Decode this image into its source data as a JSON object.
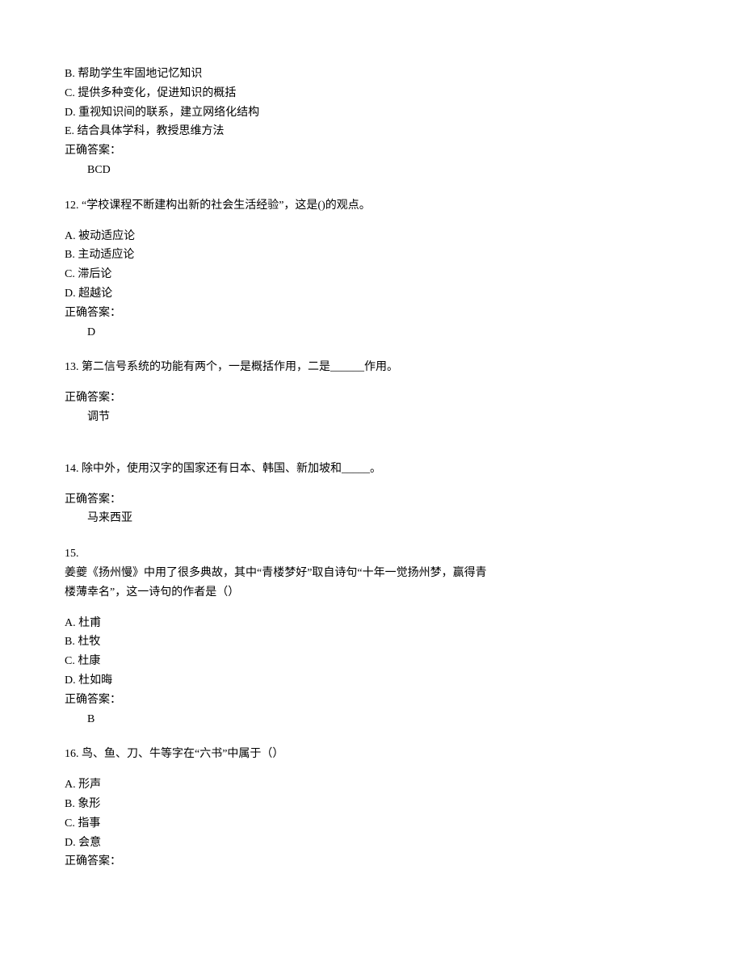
{
  "q11_partial": {
    "options": [
      "B. 帮助学生牢固地记忆知识",
      "C. 提供多种变化，促进知识的概括",
      "D. 重视知识间的联系，建立网络化结构",
      "E. 结合具体学科，教授思维方法"
    ],
    "answer_label": "正确答案：",
    "answer_value": "BCD"
  },
  "q12": {
    "number": "12. ",
    "text": "“学校课程不断建构出新的社会生活经验”，这是()的观点。",
    "options": [
      "A. 被动适应论",
      "B. 主动适应论",
      "C. 滞后论",
      "D. 超越论"
    ],
    "answer_label": "正确答案：",
    "answer_value": "D"
  },
  "q13": {
    "number": "13. ",
    "text": "第二信号系统的功能有两个，一是概括作用，二是______作用。",
    "answer_label": "正确答案：",
    "answer_value": "调节"
  },
  "q14": {
    "number": "14. ",
    "text": "除中外，使用汉字的国家还有日本、韩国、新加坡和_____。",
    "answer_label": "正确答案：",
    "answer_value": "马来西亚"
  },
  "q15": {
    "number": "15.",
    "line1": "姜夔《扬州慢》中用了很多典故，其中“青楼梦好”取自诗句“十年一觉扬州梦，赢得青",
    "line2": "楼薄幸名”，这一诗句的作者是（）",
    "options": [
      "A. 杜甫",
      "B. 杜牧",
      "C. 杜康",
      "D. 杜如晦"
    ],
    "answer_label": "正确答案：",
    "answer_value": "B"
  },
  "q16": {
    "number": "16. ",
    "text": "鸟、鱼、刀、牛等字在“六书”中属于（）",
    "options": [
      "A. 形声",
      "B. 象形",
      "C. 指事",
      "D. 会意"
    ],
    "answer_label": "正确答案："
  }
}
